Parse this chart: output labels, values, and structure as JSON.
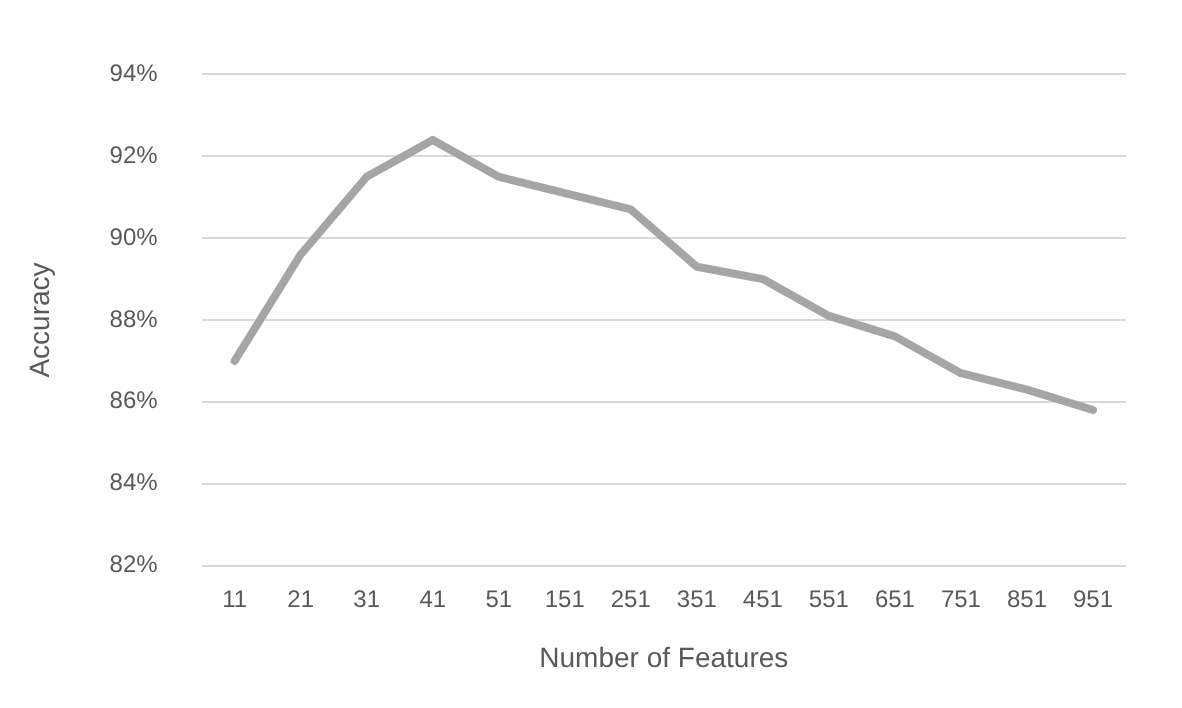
{
  "chart_data": {
    "type": "line",
    "xlabel": "Number of Features",
    "ylabel": "Accuracy",
    "categories": [
      "11",
      "21",
      "31",
      "41",
      "51",
      "151",
      "251",
      "351",
      "451",
      "551",
      "651",
      "751",
      "851",
      "951"
    ],
    "series": [
      {
        "color": "#a5a5a5",
        "values": [
          87.0,
          89.6,
          91.5,
          92.4,
          91.5,
          91.1,
          90.7,
          89.3,
          89.0,
          88.1,
          87.6,
          86.7,
          86.3,
          85.8
        ]
      }
    ],
    "ylim": [
      82,
      94
    ],
    "yticks": [
      {
        "value": 82,
        "label": "82%"
      },
      {
        "value": 84,
        "label": "84%"
      },
      {
        "value": 86,
        "label": "86%"
      },
      {
        "value": 88,
        "label": "88%"
      },
      {
        "value": 90,
        "label": "90%"
      },
      {
        "value": 92,
        "label": "92%"
      },
      {
        "value": 94,
        "label": "94%"
      }
    ],
    "grid": "y",
    "legend": false,
    "marker": "none",
    "line_style": "solid"
  }
}
